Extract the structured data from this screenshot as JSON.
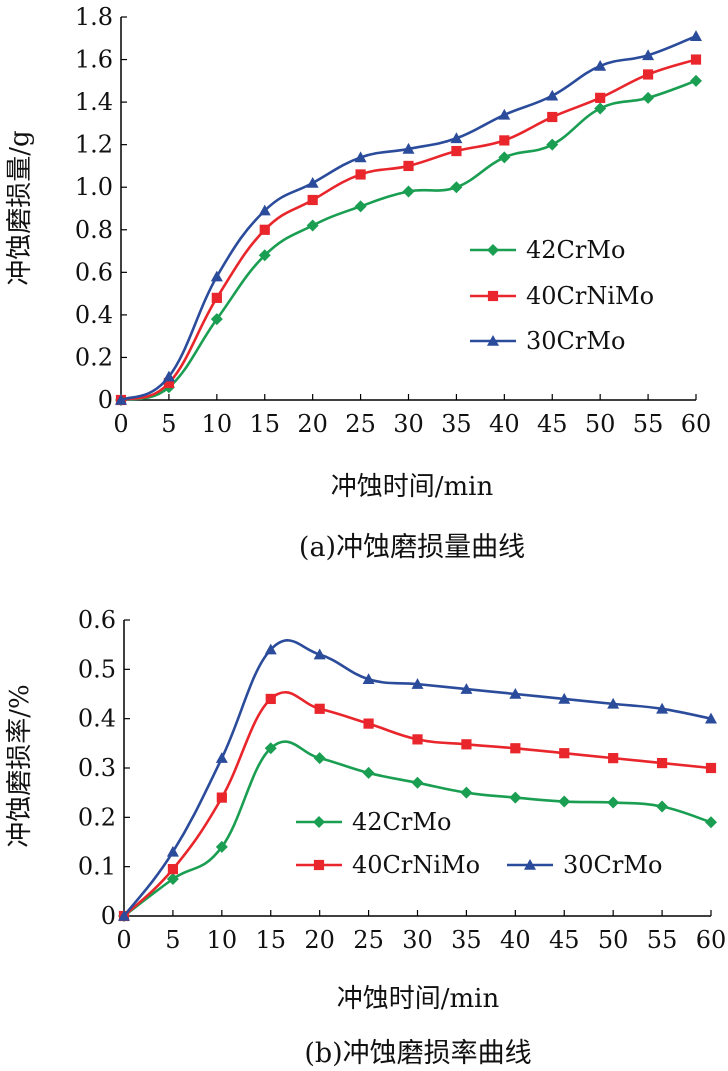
{
  "chart_data": [
    {
      "type": "line",
      "caption": "(a)冲蚀磨损量曲线",
      "xlabel": "冲蚀时间/min",
      "ylabel": "冲蚀磨损量/g",
      "x": [
        0,
        5,
        10,
        15,
        20,
        25,
        30,
        35,
        40,
        45,
        50,
        55,
        60
      ],
      "xlim": [
        0,
        60
      ],
      "ylim": [
        0,
        1.8
      ],
      "xticks": [
        "0",
        "5",
        "10",
        "15",
        "20",
        "25",
        "30",
        "35",
        "40",
        "45",
        "50",
        "55",
        "60"
      ],
      "yticks": [
        "0",
        "0.2",
        "0.4",
        "0.6",
        "0.8",
        "1.0",
        "1.2",
        "1.4",
        "1.6",
        "1.8"
      ],
      "legend_position": "right",
      "grid": false,
      "series": [
        {
          "name": "42CrMo",
          "color": "#1a9e52",
          "marker": "diamond",
          "values": [
            0,
            0.06,
            0.38,
            0.68,
            0.82,
            0.91,
            0.98,
            1.0,
            1.14,
            1.2,
            1.37,
            1.42,
            1.5
          ]
        },
        {
          "name": "40CrNiMo",
          "color": "#e8262b",
          "marker": "square",
          "values": [
            0,
            0.08,
            0.48,
            0.8,
            0.94,
            1.06,
            1.1,
            1.17,
            1.22,
            1.33,
            1.42,
            1.53,
            1.6
          ]
        },
        {
          "name": "30CrMo",
          "color": "#2b4b9b",
          "marker": "triangle",
          "values": [
            0,
            0.11,
            0.58,
            0.89,
            1.02,
            1.14,
            1.18,
            1.23,
            1.34,
            1.43,
            1.57,
            1.62,
            1.71
          ]
        }
      ]
    },
    {
      "type": "line",
      "caption": "(b)冲蚀磨损率曲线",
      "xlabel": "冲蚀时间/min",
      "ylabel": "冲蚀磨损率/%",
      "x": [
        0,
        5,
        10,
        15,
        20,
        25,
        30,
        35,
        40,
        45,
        50,
        55,
        60
      ],
      "xlim": [
        0,
        60
      ],
      "ylim": [
        0,
        0.6
      ],
      "xticks": [
        "0",
        "5",
        "10",
        "15",
        "20",
        "25",
        "30",
        "35",
        "40",
        "45",
        "50",
        "55",
        "60"
      ],
      "yticks": [
        "0",
        "0.1",
        "0.2",
        "0.3",
        "0.4",
        "0.5",
        "0.6"
      ],
      "legend_position": "bottom-right",
      "grid": false,
      "series": [
        {
          "name": "42CrMo",
          "color": "#1a9e52",
          "marker": "diamond",
          "values": [
            0,
            0.075,
            0.14,
            0.34,
            0.32,
            0.29,
            0.27,
            0.25,
            0.24,
            0.232,
            0.23,
            0.222,
            0.19
          ]
        },
        {
          "name": "40CrNiMo",
          "color": "#e8262b",
          "marker": "square",
          "values": [
            0,
            0.095,
            0.24,
            0.44,
            0.42,
            0.39,
            0.358,
            0.348,
            0.34,
            0.33,
            0.32,
            0.31,
            0.3
          ]
        },
        {
          "name": "30CrMo",
          "color": "#2b4b9b",
          "marker": "triangle",
          "values": [
            0,
            0.13,
            0.32,
            0.54,
            0.53,
            0.48,
            0.47,
            0.46,
            0.45,
            0.44,
            0.43,
            0.42,
            0.4
          ]
        }
      ]
    }
  ]
}
